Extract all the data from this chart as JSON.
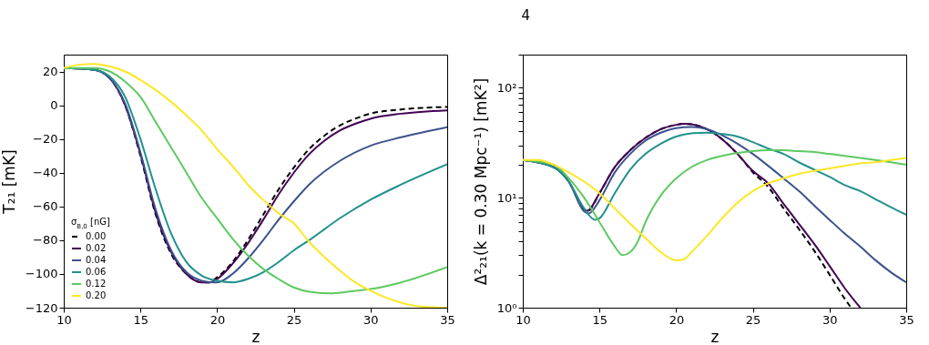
{
  "chart_data": [
    {
      "type": "line",
      "xlabel": "z",
      "ylabel": "T₂₁ [mK]",
      "legend_title": "σ$_{B,0}$ [nG]",
      "legend": "bottom left",
      "grid": false,
      "marker": "none",
      "xlim": [
        10,
        35
      ],
      "xticks": [
        10,
        15,
        20,
        25,
        30,
        35
      ],
      "ylim": [
        -120,
        30
      ],
      "yticks": [
        -120,
        -100,
        -80,
        -60,
        -40,
        -20,
        0,
        20
      ],
      "series": [
        {
          "name": "0.00",
          "color": "#000000",
          "line_style": "dashed",
          "x": [
            10,
            12,
            13,
            14,
            15,
            16,
            17,
            18,
            19,
            19.5,
            20,
            21,
            22,
            23,
            24,
            25,
            26,
            27,
            28,
            29,
            30,
            32,
            35
          ],
          "values": [
            22,
            21,
            16,
            0,
            -30,
            -65,
            -88,
            -100,
            -105,
            -105,
            -102,
            -93,
            -80,
            -65,
            -50,
            -37,
            -26,
            -18,
            -12,
            -8,
            -5,
            -2.5,
            -1
          ]
        },
        {
          "name": "0.02",
          "color": "#440154",
          "x": [
            10,
            12,
            13,
            14,
            15,
            16,
            17,
            18,
            19,
            19.5,
            20,
            21,
            22,
            23,
            24,
            25,
            26,
            27,
            28,
            29,
            30,
            32,
            35
          ],
          "values": [
            22,
            21,
            16,
            0,
            -29,
            -64,
            -87,
            -100,
            -105,
            -105,
            -103,
            -94,
            -82,
            -68,
            -53,
            -40,
            -29,
            -21,
            -15,
            -11,
            -8,
            -5,
            -3
          ]
        },
        {
          "name": "0.04",
          "color": "#3b528b",
          "x": [
            10,
            12,
            13,
            14,
            15,
            16,
            17,
            18,
            19,
            19.8,
            20,
            21,
            22,
            23,
            24,
            25,
            26,
            28,
            30,
            32,
            35
          ],
          "values": [
            22,
            21,
            16,
            1,
            -28,
            -62,
            -86,
            -99,
            -104,
            -105,
            -105,
            -100,
            -91,
            -80,
            -68,
            -57,
            -47,
            -33,
            -24,
            -19,
            -13
          ]
        },
        {
          "name": "0.06",
          "color": "#21918c",
          "x": [
            10,
            12,
            13,
            14,
            15,
            16,
            17,
            18,
            19,
            20,
            21,
            22,
            23,
            24,
            25,
            26,
            28,
            30,
            32,
            35
          ],
          "values": [
            22,
            21,
            17,
            5,
            -20,
            -50,
            -76,
            -93,
            -101,
            -104,
            -105,
            -103,
            -99,
            -93,
            -86,
            -80,
            -67,
            -56,
            -47,
            -35
          ]
        },
        {
          "name": "0.12",
          "color": "#5ec962",
          "x": [
            10,
            12,
            13,
            14,
            15,
            16,
            17,
            18,
            19,
            20,
            21,
            22,
            23,
            24,
            25,
            26,
            27.5,
            29,
            30,
            32,
            35
          ],
          "values": [
            22,
            22,
            20,
            14,
            5,
            -10,
            -25,
            -40,
            -55,
            -67,
            -79,
            -89,
            -97,
            -103,
            -108,
            -110.5,
            -111.5,
            -110,
            -109,
            -105,
            -96
          ]
        },
        {
          "name": "0.20",
          "color": "#fde725",
          "x": [
            10,
            11,
            12,
            13,
            14,
            15,
            16,
            17,
            18,
            19,
            20,
            21,
            22,
            23,
            24,
            25,
            26,
            27,
            28,
            29,
            30,
            31,
            32,
            33,
            35
          ],
          "values": [
            22,
            24,
            24.5,
            23,
            20,
            15,
            9,
            2,
            -6,
            -15,
            -26,
            -36,
            -47,
            -56,
            -64,
            -70,
            -81,
            -90,
            -98,
            -105,
            -110,
            -114,
            -117,
            -119,
            -120
          ]
        }
      ]
    },
    {
      "type": "line",
      "xlabel": "z",
      "ylabel": "Δ²₂₁(k = 0.30 Mpc⁻¹) [mK²]",
      "log": "y",
      "legend": false,
      "grid": false,
      "marker": "none",
      "annotations": [
        "4"
      ],
      "xlim": [
        10,
        35
      ],
      "xticks": [
        10,
        15,
        20,
        25,
        30,
        35
      ],
      "ylim": [
        1,
        200
      ],
      "yticks": [
        {
          "value": 1,
          "label": "10⁰"
        },
        {
          "value": 2,
          "label": null
        },
        {
          "value": 3,
          "label": null
        },
        {
          "value": 4,
          "label": null
        },
        {
          "value": 5,
          "label": null
        },
        {
          "value": 6,
          "label": null
        },
        {
          "value": 7,
          "label": null
        },
        {
          "value": 8,
          "label": null
        },
        {
          "value": 9,
          "label": null
        },
        {
          "value": 10,
          "label": "10¹"
        },
        {
          "value": 20,
          "label": null
        },
        {
          "value": 30,
          "label": null
        },
        {
          "value": 40,
          "label": null
        },
        {
          "value": 50,
          "label": null
        },
        {
          "value": 60,
          "label": null
        },
        {
          "value": 70,
          "label": null
        },
        {
          "value": 80,
          "label": null
        },
        {
          "value": 90,
          "label": null
        },
        {
          "value": 100,
          "label": "10²"
        },
        {
          "value": 200,
          "label": null
        }
      ],
      "series": [
        {
          "color": "#000000",
          "line_style": "dashed",
          "x": [
            10,
            12,
            13,
            14,
            14.2,
            15,
            16,
            17,
            18,
            19,
            20,
            20.6,
            21,
            22,
            23,
            24,
            25,
            26,
            27,
            28,
            29,
            30,
            31,
            31.4
          ],
          "values": [
            22,
            19,
            14,
            7.8,
            7.5,
            11,
            19,
            27,
            35,
            42,
            46,
            47,
            46.5,
            42,
            34,
            25,
            17,
            12.5,
            8,
            5.2,
            3.3,
            2.0,
            1.2,
            1.0
          ]
        },
        {
          "color": "#440154",
          "x": [
            10,
            12,
            13,
            14,
            14.2,
            15,
            16,
            17,
            18,
            19,
            20,
            20.6,
            21,
            22,
            23,
            24,
            25,
            26,
            27,
            28,
            29,
            30,
            31,
            32
          ],
          "values": [
            22,
            19,
            14,
            7.9,
            7.6,
            11,
            19,
            27,
            35,
            42,
            46,
            47,
            46.5,
            42,
            34,
            25,
            17.5,
            13.5,
            8.8,
            5.8,
            3.8,
            2.4,
            1.5,
            1.0
          ]
        },
        {
          "color": "#3b528b",
          "x": [
            10,
            12,
            13,
            14,
            14.3,
            15,
            16,
            17,
            18,
            19,
            20,
            21,
            22,
            23,
            24,
            25,
            26,
            27,
            28,
            29,
            30,
            31,
            32,
            33,
            34,
            35
          ],
          "values": [
            22,
            19,
            14,
            7.5,
            7.2,
            9.5,
            17,
            25,
            33,
            39,
            43,
            44,
            42,
            37,
            31,
            25,
            19.5,
            15,
            11.5,
            8.5,
            6.3,
            4.7,
            3.6,
            2.7,
            2.1,
            1.7
          ]
        },
        {
          "color": "#21918c",
          "x": [
            10,
            12,
            13,
            14,
            14.7,
            15,
            16,
            17,
            18,
            19,
            20,
            21,
            22,
            23,
            24,
            25,
            26,
            27,
            28,
            29,
            30,
            31,
            32,
            33,
            34,
            35
          ],
          "values": [
            22,
            19,
            14,
            8,
            6.3,
            6.5,
            11,
            18,
            25,
            31,
            36,
            38.5,
            39,
            38,
            36,
            32,
            28,
            25,
            21,
            18,
            15.5,
            13,
            11.5,
            9.7,
            8.2,
            7
          ]
        },
        {
          "color": "#5ec962",
          "x": [
            10,
            12,
            13,
            14,
            15,
            16,
            16.5,
            17,
            17.5,
            18,
            19,
            20,
            21,
            22,
            23,
            24,
            25,
            26,
            27,
            28,
            29,
            30,
            31,
            32,
            33,
            34,
            35
          ],
          "values": [
            22,
            20,
            15,
            10,
            6,
            3.6,
            3.0,
            3.2,
            4,
            6,
            10.5,
            15,
            19,
            22,
            24,
            25.5,
            26.5,
            27,
            27,
            26.5,
            26,
            25,
            24,
            23,
            22,
            21,
            20
          ]
        },
        {
          "color": "#fde725",
          "x": [
            10,
            11,
            12,
            13,
            14,
            15,
            16,
            17,
            18,
            19,
            20,
            20.5,
            21,
            22,
            23,
            24,
            25,
            26,
            27,
            28,
            29,
            30,
            31,
            32,
            33,
            34,
            35
          ],
          "values": [
            22,
            22,
            20,
            17,
            14,
            11,
            8,
            5.8,
            4.3,
            3.2,
            2.7,
            2.75,
            3.2,
            4.5,
            6.5,
            9,
            11.5,
            13.5,
            15,
            16.5,
            17.5,
            18.5,
            19.5,
            20.5,
            21,
            22,
            23
          ]
        }
      ]
    }
  ]
}
